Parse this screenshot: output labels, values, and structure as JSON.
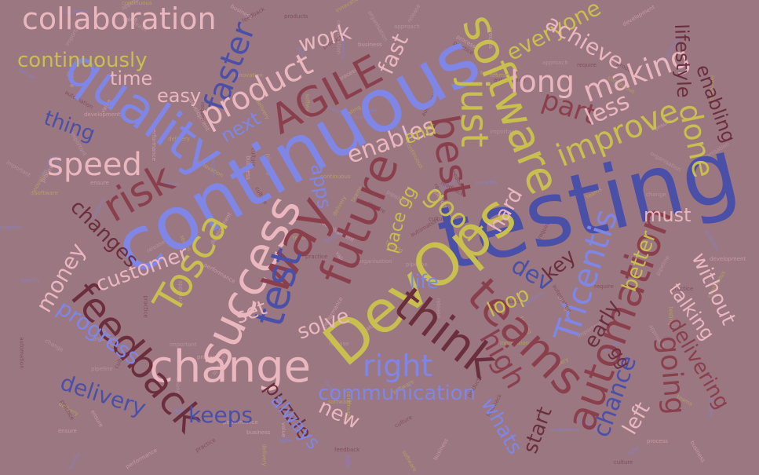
{
  "palette": {
    "background": "#9b7781",
    "blue": "#4a4fa8",
    "light_blue": "#7f86e6",
    "yellow": "#c8bf4e",
    "pink": "#eab7bf",
    "dark_red": "#8a3f4d",
    "maroon": "#6b2e3d",
    "faint": "#c9a7b0"
  },
  "words": [
    {
      "text": "testing",
      "color": "blue"
    },
    {
      "text": "continuous",
      "color": "light_blue"
    },
    {
      "text": "quality",
      "color": "light_blue"
    },
    {
      "text": "DevOps",
      "color": "yellow"
    },
    {
      "text": "software",
      "color": "yellow"
    },
    {
      "text": "change",
      "color": "pink"
    },
    {
      "text": "success",
      "color": "pink"
    },
    {
      "text": "way",
      "color": "dark_red"
    },
    {
      "text": "future",
      "color": "dark_red"
    },
    {
      "text": "feedback",
      "color": "maroon"
    },
    {
      "text": "teams",
      "color": "dark_red"
    },
    {
      "text": "automation",
      "color": "dark_red"
    },
    {
      "text": "think",
      "color": "maroon"
    },
    {
      "text": "test",
      "color": "blue"
    },
    {
      "text": "Tosca",
      "color": "yellow"
    },
    {
      "text": "risk",
      "color": "dark_red"
    },
    {
      "text": "AGILE",
      "color": "dark_red"
    },
    {
      "text": "best",
      "color": "dark_red"
    },
    {
      "text": "just",
      "color": "yellow"
    },
    {
      "text": "Tricentis",
      "color": "light_blue"
    },
    {
      "text": "collaboration",
      "color": "pink"
    },
    {
      "text": "continuously",
      "color": "yellow"
    },
    {
      "text": "faster",
      "color": "blue"
    },
    {
      "text": "product",
      "color": "pink"
    },
    {
      "text": "speed",
      "color": "pink"
    },
    {
      "text": "right",
      "color": "light_blue"
    },
    {
      "text": "communication",
      "color": "light_blue"
    },
    {
      "text": "long",
      "color": "pink"
    },
    {
      "text": "making",
      "color": "pink"
    },
    {
      "text": "improve",
      "color": "yellow"
    },
    {
      "text": "done",
      "color": "yellow"
    },
    {
      "text": "part",
      "color": "dark_red"
    },
    {
      "text": "going",
      "color": "dark_red"
    },
    {
      "text": "delivering",
      "color": "dark_red"
    },
    {
      "text": "high",
      "color": "dark_red"
    },
    {
      "text": "chance",
      "color": "blue"
    },
    {
      "text": "delivery",
      "color": "blue"
    },
    {
      "text": "keeps",
      "color": "blue"
    },
    {
      "text": "puzzle",
      "color": "maroon"
    },
    {
      "text": "progress",
      "color": "light_blue"
    },
    {
      "text": "money",
      "color": "pink"
    },
    {
      "text": "customer",
      "color": "pink"
    },
    {
      "text": "changes",
      "color": "maroon"
    },
    {
      "text": "good",
      "color": "yellow"
    },
    {
      "text": "enables",
      "color": "pink"
    },
    {
      "text": "end",
      "color": "yellow"
    },
    {
      "text": "work",
      "color": "pink"
    },
    {
      "text": "fast",
      "color": "pink"
    },
    {
      "text": "everyone",
      "color": "yellow"
    },
    {
      "text": "achieve",
      "color": "pink"
    },
    {
      "text": "lifestyle",
      "color": "maroon"
    },
    {
      "text": "enabling",
      "color": "maroon"
    },
    {
      "text": "less",
      "color": "pink"
    },
    {
      "text": "time",
      "color": "pink"
    },
    {
      "text": "easy",
      "color": "pink"
    },
    {
      "text": "thing",
      "color": "blue"
    },
    {
      "text": "next",
      "color": "light_blue"
    },
    {
      "text": "must",
      "color": "pink"
    },
    {
      "text": "key",
      "color": "maroon"
    },
    {
      "text": "dev",
      "color": "blue"
    },
    {
      "text": "better",
      "color": "yellow"
    },
    {
      "text": "early",
      "color": "maroon"
    },
    {
      "text": "without",
      "color": "pink"
    },
    {
      "text": "talking",
      "color": "pink"
    },
    {
      "text": "loop",
      "color": "yellow"
    },
    {
      "text": "life",
      "color": "light_blue"
    },
    {
      "text": "solve",
      "color": "pink"
    },
    {
      "text": "set",
      "color": "pink"
    },
    {
      "text": "hard",
      "color": "pink"
    },
    {
      "text": "apps",
      "color": "light_blue"
    },
    {
      "text": "pace",
      "color": "yellow"
    },
    {
      "text": "gg",
      "color": "yellow"
    },
    {
      "text": "new",
      "color": "pink"
    },
    {
      "text": "always",
      "color": "light_blue"
    },
    {
      "text": "whats",
      "color": "light_blue"
    },
    {
      "text": "start",
      "color": "maroon"
    },
    {
      "text": "left",
      "color": "pink"
    },
    {
      "text": "gg",
      "color": "maroon"
    }
  ],
  "filler_words": [
    "organisation",
    "development",
    "benefits",
    "delivery",
    "require",
    "approach",
    "process",
    "agile",
    "teams",
    "automation",
    "release",
    "business",
    "problem",
    "innovation",
    "practice",
    "important",
    "performance",
    "quality",
    "continuous",
    "culture",
    "pipeline",
    "ensure",
    "deliver",
    "testing",
    "feedback",
    "change",
    "value",
    "customers",
    "software",
    "products"
  ]
}
